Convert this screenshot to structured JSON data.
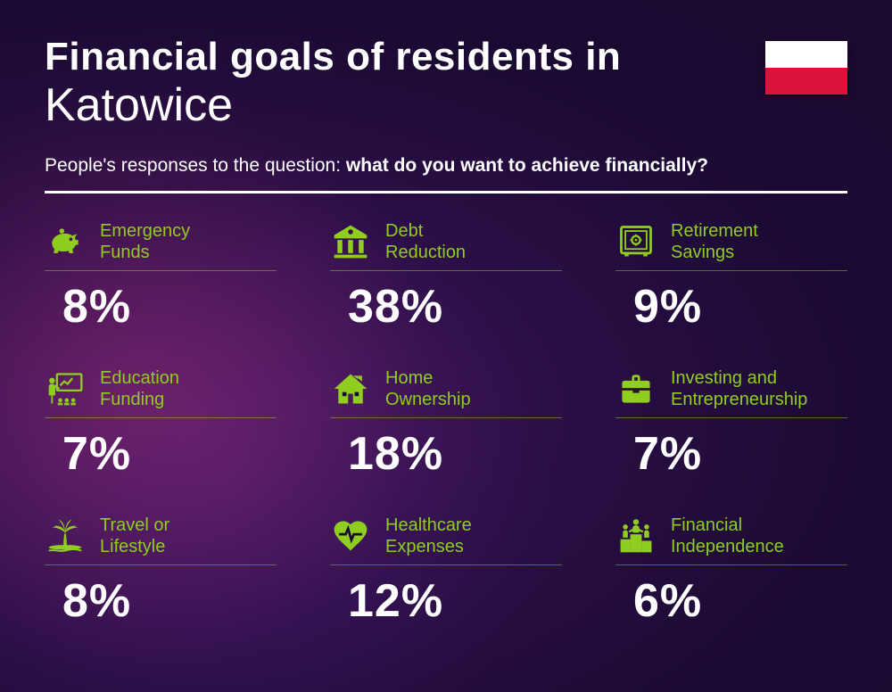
{
  "title_line1": "Financial goals of residents in",
  "title_line2": "Katowice",
  "subtitle_prefix": "People's responses to the question: ",
  "subtitle_bold": "what do you want to achieve financially?",
  "flag": {
    "top_color": "#ffffff",
    "bottom_color": "#dc143c"
  },
  "accent_color": "#8fce1e",
  "label_color": "#8fce1e",
  "background_colors": {
    "base_start": "#4a1a5c",
    "base_end": "#1a0a2e"
  },
  "typography": {
    "title_line1_fontsize": 44,
    "title_line1_weight": 800,
    "title_line2_fontsize": 52,
    "title_line2_weight": 300,
    "subtitle_fontsize": 21,
    "label_fontsize": 20,
    "value_fontsize": 52,
    "value_weight": 800
  },
  "layout": {
    "columns": 3,
    "rows": 3,
    "column_gap": 60,
    "row_gap": 38
  },
  "items": [
    {
      "icon": "piggy-bank",
      "label": "Emergency\nFunds",
      "value": "8%"
    },
    {
      "icon": "bank",
      "label": "Debt\nReduction",
      "value": "38%"
    },
    {
      "icon": "safe",
      "label": "Retirement\nSavings",
      "value": "9%"
    },
    {
      "icon": "presentation",
      "label": "Education\nFunding",
      "value": "7%"
    },
    {
      "icon": "house",
      "label": "Home\nOwnership",
      "value": "18%"
    },
    {
      "icon": "briefcase",
      "label": "Investing and\nEntrepreneurship",
      "value": "7%"
    },
    {
      "icon": "palm",
      "label": "Travel or\nLifestyle",
      "value": "8%"
    },
    {
      "icon": "heart-pulse",
      "label": "Healthcare\nExpenses",
      "value": "12%"
    },
    {
      "icon": "podium",
      "label": "Financial\nIndependence",
      "value": "6%"
    }
  ]
}
